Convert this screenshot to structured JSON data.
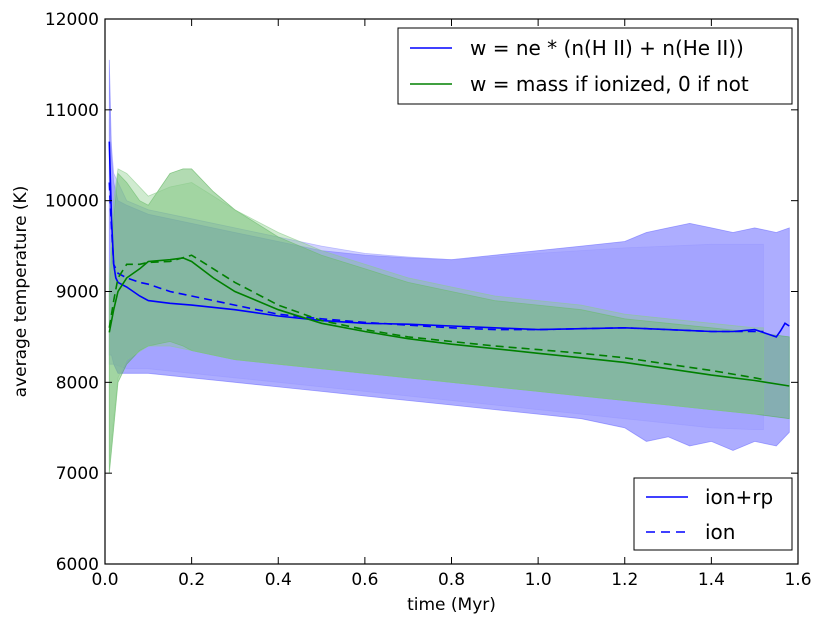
{
  "chart_data": {
    "type": "line",
    "xlabel": "time (Myr)",
    "ylabel": "average temperature (K)",
    "xlim": [
      0.0,
      1.6
    ],
    "ylim": [
      6000,
      12000
    ],
    "xticks": [
      0.0,
      0.2,
      0.4,
      0.6,
      0.8,
      1.0,
      1.2,
      1.4,
      1.6
    ],
    "xtick_labels": [
      "0.0",
      "0.2",
      "0.4",
      "0.6",
      "0.8",
      "1.0",
      "1.2",
      "1.4",
      "1.6"
    ],
    "yticks": [
      6000,
      7000,
      8000,
      9000,
      10000,
      11000,
      12000
    ],
    "ytick_labels": [
      "6000",
      "7000",
      "8000",
      "9000",
      "10000",
      "11000",
      "12000"
    ],
    "colors": {
      "blue": "#0000ff",
      "green": "#008000",
      "blue_fill": "#6a6aff",
      "green_fill": "#55b055"
    },
    "legend_weight": {
      "position": "top-right",
      "entries": [
        {
          "label": "w = ne * (n(H II) + n(He II))",
          "color": "#0000ff"
        },
        {
          "label": "w = mass if ionized, 0 if not",
          "color": "#008000"
        }
      ]
    },
    "legend_style": {
      "position": "bottom-right",
      "entries": [
        {
          "label": "ion+rp",
          "style": "solid"
        },
        {
          "label": "ion",
          "style": "dashed"
        }
      ]
    },
    "series": [
      {
        "name": "blue ion+rp (mean)",
        "color": "#0000ff",
        "style": "solid",
        "x": [
          0.01,
          0.015,
          0.02,
          0.025,
          0.03,
          0.05,
          0.08,
          0.1,
          0.15,
          0.2,
          0.3,
          0.4,
          0.5,
          0.6,
          0.7,
          0.8,
          0.9,
          1.0,
          1.1,
          1.2,
          1.3,
          1.4,
          1.45,
          1.5,
          1.55,
          1.56,
          1.57,
          1.58
        ],
        "y": [
          10650,
          9800,
          9300,
          9150,
          9100,
          9050,
          8950,
          8900,
          8870,
          8850,
          8800,
          8730,
          8680,
          8650,
          8640,
          8620,
          8600,
          8580,
          8590,
          8600,
          8580,
          8560,
          8560,
          8580,
          8500,
          8570,
          8650,
          8620
        ]
      },
      {
        "name": "blue ion (mean)",
        "color": "#0000ff",
        "style": "dashed",
        "x": [
          0.01,
          0.015,
          0.02,
          0.03,
          0.05,
          0.08,
          0.1,
          0.15,
          0.2,
          0.3,
          0.4,
          0.5,
          0.6,
          0.7,
          0.8,
          0.9,
          1.0,
          1.1,
          1.2,
          1.3,
          1.4,
          1.5,
          1.52
        ],
        "y": [
          10200,
          9700,
          9300,
          9200,
          9150,
          9100,
          9080,
          9000,
          8950,
          8850,
          8750,
          8700,
          8660,
          8630,
          8600,
          8580,
          8580,
          8590,
          8600,
          8580,
          8560,
          8560,
          8560
        ]
      },
      {
        "name": "green ion+rp (mean)",
        "color": "#008000",
        "style": "solid",
        "x": [
          0.01,
          0.02,
          0.03,
          0.05,
          0.08,
          0.1,
          0.15,
          0.18,
          0.2,
          0.25,
          0.3,
          0.4,
          0.5,
          0.6,
          0.7,
          0.8,
          0.9,
          1.0,
          1.1,
          1.2,
          1.3,
          1.4,
          1.5,
          1.58
        ],
        "y": [
          8550,
          8800,
          9000,
          9150,
          9250,
          9330,
          9350,
          9370,
          9330,
          9150,
          9000,
          8800,
          8650,
          8560,
          8480,
          8420,
          8370,
          8320,
          8270,
          8220,
          8150,
          8080,
          8020,
          7960
        ]
      },
      {
        "name": "green ion (mean)",
        "color": "#008000",
        "style": "dashed",
        "x": [
          0.01,
          0.02,
          0.03,
          0.05,
          0.08,
          0.1,
          0.15,
          0.2,
          0.25,
          0.3,
          0.4,
          0.5,
          0.6,
          0.7,
          0.8,
          0.9,
          1.0,
          1.1,
          1.2,
          1.3,
          1.4,
          1.5,
          1.52
        ],
        "y": [
          8600,
          8900,
          9150,
          9300,
          9300,
          9320,
          9330,
          9400,
          9250,
          9100,
          8850,
          8680,
          8580,
          8500,
          8450,
          8400,
          8360,
          8320,
          8270,
          8200,
          8130,
          8050,
          8030
        ]
      }
    ],
    "bands": [
      {
        "name": "blue ion+rp range",
        "color": "#6a6aff",
        "opacity": 0.55,
        "x": [
          0.01,
          0.015,
          0.02,
          0.03,
          0.05,
          0.1,
          0.2,
          0.3,
          0.4,
          0.5,
          0.6,
          0.7,
          0.8,
          0.9,
          1.0,
          1.1,
          1.2,
          1.25,
          1.3,
          1.35,
          1.4,
          1.45,
          1.5,
          1.55,
          1.58
        ],
        "upper": [
          11550,
          10500,
          10200,
          10000,
          9950,
          9850,
          9750,
          9650,
          9550,
          9450,
          9400,
          9370,
          9350,
          9400,
          9450,
          9500,
          9550,
          9650,
          9700,
          9750,
          9700,
          9650,
          9700,
          9650,
          9700
        ],
        "lower": [
          8300,
          8300,
          8200,
          8100,
          8100,
          8100,
          8050,
          8000,
          7950,
          7900,
          7850,
          7800,
          7750,
          7700,
          7650,
          7600,
          7500,
          7350,
          7400,
          7300,
          7350,
          7250,
          7350,
          7300,
          7450
        ]
      },
      {
        "name": "blue ion range",
        "color": "#9a9aff",
        "opacity": 0.45,
        "x": [
          0.01,
          0.02,
          0.05,
          0.1,
          0.2,
          0.3,
          0.4,
          0.5,
          0.6,
          0.7,
          0.8,
          0.9,
          1.0,
          1.1,
          1.2,
          1.3,
          1.4,
          1.5,
          1.52
        ],
        "upper": [
          10900,
          10300,
          10000,
          9900,
          9800,
          9700,
          9600,
          9500,
          9420,
          9380,
          9350,
          9380,
          9420,
          9450,
          9480,
          9500,
          9520,
          9520,
          9520
        ],
        "lower": [
          8200,
          8200,
          8150,
          8150,
          8100,
          8050,
          8000,
          7950,
          7900,
          7850,
          7800,
          7750,
          7700,
          7650,
          7600,
          7550,
          7500,
          7480,
          7480
        ]
      },
      {
        "name": "green ion+rp range",
        "color": "#55b055",
        "opacity": 0.45,
        "x": [
          0.01,
          0.02,
          0.03,
          0.05,
          0.08,
          0.1,
          0.15,
          0.18,
          0.2,
          0.25,
          0.3,
          0.4,
          0.5,
          0.6,
          0.7,
          0.8,
          0.9,
          1.0,
          1.1,
          1.2,
          1.3,
          1.4,
          1.5,
          1.58
        ],
        "upper": [
          9000,
          9800,
          10300,
          10200,
          10000,
          9950,
          10300,
          10350,
          10350,
          10100,
          9900,
          9600,
          9400,
          9250,
          9100,
          9000,
          8900,
          8850,
          8800,
          8700,
          8650,
          8600,
          8550,
          8500
        ],
        "lower": [
          7000,
          7500,
          8000,
          8200,
          8350,
          8400,
          8450,
          8400,
          8350,
          8300,
          8250,
          8200,
          8150,
          8100,
          8050,
          8000,
          7950,
          7900,
          7850,
          7800,
          7750,
          7700,
          7650,
          7600
        ]
      },
      {
        "name": "green ion range",
        "color": "#8acc8a",
        "opacity": 0.4,
        "x": [
          0.01,
          0.02,
          0.03,
          0.05,
          0.1,
          0.15,
          0.2,
          0.25,
          0.3,
          0.4,
          0.5,
          0.6,
          0.7,
          0.8,
          0.9,
          1.0,
          1.1,
          1.2,
          1.3,
          1.4,
          1.5,
          1.52
        ],
        "upper": [
          9200,
          10000,
          10350,
          10300,
          10050,
          10150,
          10200,
          10050,
          9900,
          9650,
          9450,
          9300,
          9150,
          9050,
          8950,
          8900,
          8850,
          8750,
          8700,
          8650,
          8600,
          8600
        ],
        "lower": [
          7100,
          7600,
          8050,
          8250,
          8400,
          8400,
          8350,
          8300,
          8250,
          8200,
          8150,
          8100,
          8050,
          8000,
          7950,
          7900,
          7850,
          7800,
          7750,
          7700,
          7650,
          7650
        ]
      }
    ]
  }
}
